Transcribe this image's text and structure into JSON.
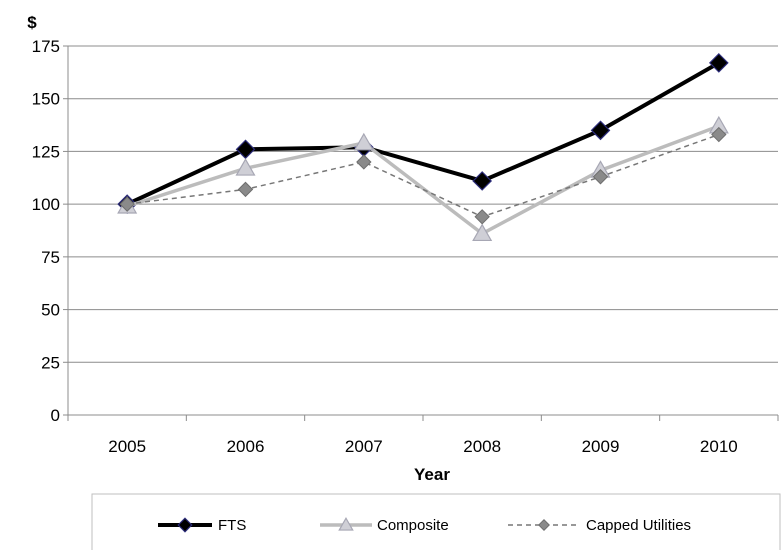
{
  "chart_data": {
    "type": "line",
    "ylabel": "$",
    "xlabel": "Year",
    "categories": [
      "2005",
      "2006",
      "2007",
      "2008",
      "2009",
      "2010"
    ],
    "ylim": [
      0,
      175
    ],
    "yticks": [
      0,
      25,
      50,
      75,
      100,
      125,
      150,
      175
    ],
    "grid": true,
    "legend_position": "bottom",
    "series": [
      {
        "name": "FTS",
        "values": [
          100,
          126,
          127,
          111,
          135,
          167
        ],
        "color": "#000000",
        "marker": "diamond",
        "line_style": "solid"
      },
      {
        "name": "Composite",
        "values": [
          99,
          117,
          129,
          86,
          116,
          137
        ],
        "color": "#bcbcbc",
        "marker": "triangle",
        "line_style": "solid"
      },
      {
        "name": "Capped Utilities",
        "values": [
          100,
          107,
          120,
          94,
          113,
          133
        ],
        "color": "#777777",
        "marker": "diamond",
        "line_style": "dashed"
      }
    ]
  }
}
